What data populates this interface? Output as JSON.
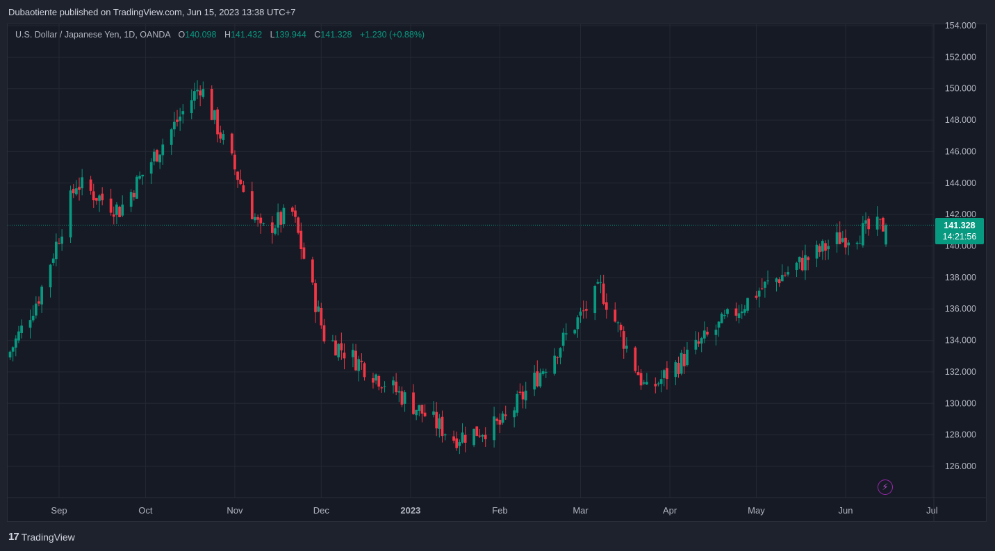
{
  "header": {
    "published": "Dubaotiente published on TradingView.com, Jun 15, 2023 13:38 UTC+7"
  },
  "legend": {
    "symbol": "U.S. Dollar / Japanese Yen, 1D, OANDA",
    "open_label": "O",
    "open": "140.098",
    "high_label": "H",
    "high": "141.432",
    "low_label": "L",
    "low": "139.944",
    "close_label": "C",
    "close": "141.328",
    "change": "+1.230 (+0.88%)"
  },
  "price_tag": {
    "price": "141.328",
    "countdown": "14:21:56"
  },
  "brand": {
    "logo": "17",
    "name": "TradingView"
  },
  "icons": {
    "bolt": "lightning-icon"
  },
  "colors": {
    "up": "#089981",
    "down": "#f23645",
    "background": "#161a25",
    "grid": "#242832",
    "accent": "#9c27b0"
  },
  "chart_data": {
    "type": "candlestick",
    "interval": "1D",
    "y_ticks": [
      "154.000",
      "152.000",
      "150.000",
      "148.000",
      "146.000",
      "144.000",
      "142.000",
      "140.000",
      "138.000",
      "136.000",
      "134.000",
      "132.000",
      "130.000",
      "128.000",
      "126.000"
    ],
    "y_range": [
      124.5,
      154.2
    ],
    "x_ticks": [
      {
        "label": "Sep",
        "date": "2022-09-01"
      },
      {
        "label": "Oct",
        "date": "2022-10-01"
      },
      {
        "label": "Nov",
        "date": "2022-11-01"
      },
      {
        "label": "Dec",
        "date": "2022-12-01"
      },
      {
        "label": "2023",
        "date": "2023-01-01"
      },
      {
        "label": "Feb",
        "date": "2023-02-01"
      },
      {
        "label": "Mar",
        "date": "2023-03-01"
      },
      {
        "label": "Apr",
        "date": "2023-04-01"
      },
      {
        "label": "May",
        "date": "2023-05-01"
      },
      {
        "label": "Jun",
        "date": "2023-06-01"
      },
      {
        "label": "Jul",
        "date": "2023-07-01"
      }
    ],
    "last_price": 141.328,
    "key_closes": [
      {
        "date": "2022-08-15",
        "close": 133.3
      },
      {
        "date": "2022-08-25",
        "close": 136.8
      },
      {
        "date": "2022-09-07",
        "close": 144.0
      },
      {
        "date": "2022-09-22",
        "close": 142.3
      },
      {
        "date": "2022-10-20",
        "close": 150.2
      },
      {
        "date": "2022-11-10",
        "close": 140.9
      },
      {
        "date": "2022-11-21",
        "close": 142.1
      },
      {
        "date": "2022-12-02",
        "close": 134.3
      },
      {
        "date": "2022-12-20",
        "close": 131.8
      },
      {
        "date": "2023-01-16",
        "close": 127.8
      },
      {
        "date": "2023-02-02",
        "close": 128.7
      },
      {
        "date": "2023-03-08",
        "close": 137.3
      },
      {
        "date": "2023-03-24",
        "close": 130.7
      },
      {
        "date": "2023-05-02",
        "close": 137.2
      },
      {
        "date": "2023-05-30",
        "close": 140.5
      },
      {
        "date": "2023-06-15",
        "close": 141.328
      }
    ]
  }
}
